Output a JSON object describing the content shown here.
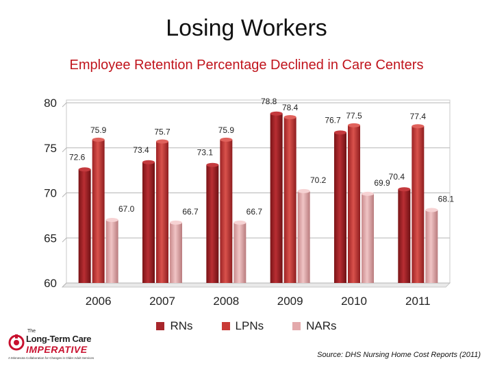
{
  "title": "Losing Workers",
  "subtitle": "Employee Retention Percentage Declined in Care Centers",
  "subtitle_color": "#c0141c",
  "source": "Source: DHS Nursing Home Cost Reports (2011)",
  "logo": {
    "the": "The",
    "line1": "Long-Term Care",
    "line2": "IMPERATIVE",
    "tagline": "A Minnesota Collaboration for Changes in Older Adult Services"
  },
  "chart_data": {
    "type": "bar",
    "categories": [
      "2006",
      "2007",
      "2008",
      "2009",
      "2010",
      "2011"
    ],
    "series": [
      {
        "name": "RNs",
        "values": [
          72.6,
          73.4,
          73.1,
          78.8,
          76.7,
          70.4
        ],
        "labels": [
          "72.6",
          "73.4",
          "73.1",
          "78.8",
          "76.7",
          "70.4"
        ],
        "color": "#a8262b"
      },
      {
        "name": "LPNs",
        "values": [
          75.9,
          75.7,
          75.9,
          78.4,
          77.5,
          77.4
        ],
        "labels": [
          "75.9",
          "75.7",
          "75.9",
          "78.4",
          "77.5",
          "77.4"
        ],
        "color": "#c93a36"
      },
      {
        "name": "NARs",
        "values": [
          67.0,
          66.7,
          66.7,
          70.2,
          69.9,
          68.1
        ],
        "labels": [
          "67.0",
          "66.7",
          "66.7",
          "70.2",
          "69.9",
          "68.1"
        ],
        "color": "#e3a9ab"
      }
    ],
    "ylim": [
      60,
      80
    ],
    "yticks": [
      "60",
      "65",
      "70",
      "75",
      "80"
    ],
    "grid": true,
    "legend_position": "bottom",
    "xlabel": "",
    "ylabel": ""
  }
}
